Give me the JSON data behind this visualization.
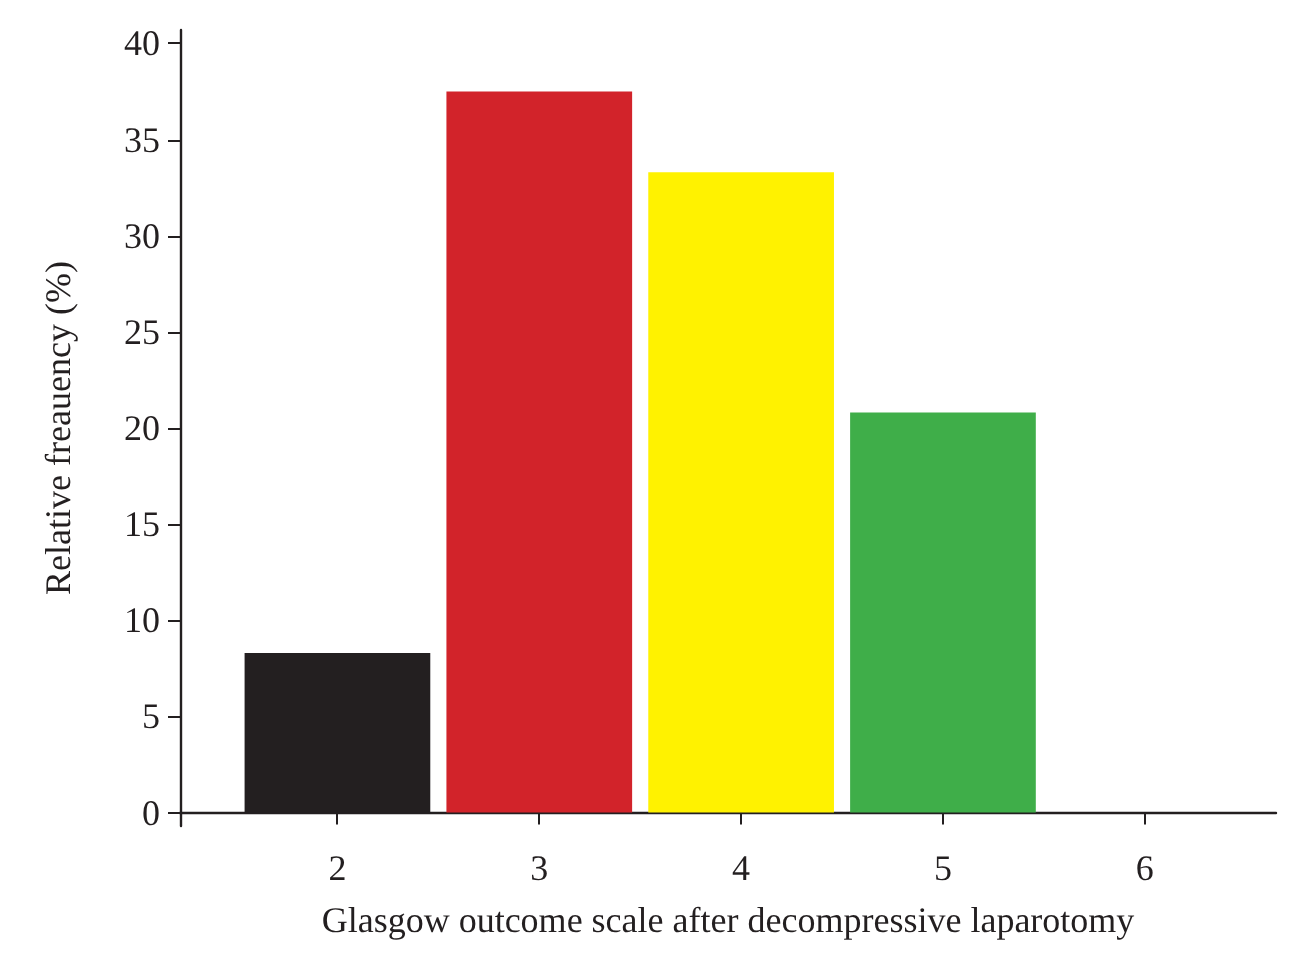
{
  "chart_data": {
    "type": "bar",
    "xlabel": "Glasgow outcome scale after decompressive laparotomy",
    "ylabel": "Relative freauency (%)",
    "x": [
      2,
      3,
      4,
      5
    ],
    "values": [
      8.3,
      37.5,
      33.3,
      20.8
    ],
    "colors": [
      "#231f20",
      "#d2232a",
      "#fff200",
      "#3fae49"
    ],
    "xlim": [
      1.22,
      6.65
    ],
    "xticks": [
      2,
      3,
      4,
      5,
      6
    ],
    "ylim": [
      -0.7,
      40.7
    ],
    "yticks": [
      0,
      5,
      10,
      15,
      20,
      25,
      30,
      35,
      40
    ],
    "grid": false
  }
}
